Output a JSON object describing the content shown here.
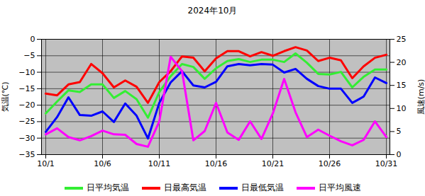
{
  "chart_data": {
    "type": "line",
    "title": "2024年10月",
    "categories": [
      "10/1",
      null,
      null,
      null,
      null,
      "10/6",
      null,
      null,
      null,
      null,
      "10/11",
      null,
      null,
      null,
      null,
      "10/16",
      null,
      null,
      null,
      null,
      "10/21",
      null,
      null,
      null,
      null,
      "10/26",
      null,
      null,
      null,
      null,
      "10/31"
    ],
    "y_label": "気温(℃)",
    "y2_label": "風速(m/s)",
    "ylim": [
      -35,
      0
    ],
    "yticks": [
      -35,
      -30,
      -25,
      -20,
      -15,
      -10,
      -5,
      0
    ],
    "y2lim": [
      0,
      25
    ],
    "y2ticks": [
      0,
      5,
      10,
      15,
      20,
      25
    ],
    "grid": true,
    "legend": "bottom",
    "series": [
      {
        "name": "日平均気温",
        "color": "#33ee33",
        "values": [
          -22.5,
          -18.9,
          -15.5,
          -16,
          -13.7,
          -13.7,
          -17.8,
          -15.7,
          -18.2,
          -23.8,
          -16,
          -11.2,
          -7.5,
          -8.4,
          -12,
          -8.8,
          -6.6,
          -6,
          -6.9,
          -6.2,
          -6.2,
          -6.9,
          -4.3,
          -7.1,
          -10.5,
          -10.7,
          -9.9,
          -14.6,
          -11.4,
          -9.2,
          -9.2
        ]
      },
      {
        "name": "日最高気温",
        "color": "#ff0000",
        "values": [
          -16.5,
          -17,
          -13.7,
          -13,
          -7.5,
          -10.3,
          -14.6,
          -12.5,
          -14.4,
          -19.3,
          -13,
          -9.7,
          -5.2,
          -5.6,
          -9.7,
          -5.8,
          -3.6,
          -3.6,
          -5.2,
          -3.9,
          -5,
          -3.6,
          -2.4,
          -3.4,
          -6.6,
          -5.6,
          -6.4,
          -11.8,
          -8.2,
          -5.6,
          -4.7
        ]
      },
      {
        "name": "日最低気温",
        "color": "#0000ff",
        "values": [
          -28.1,
          -23.6,
          -17.6,
          -23,
          -23.2,
          -21.9,
          -25.1,
          -19.5,
          -23.2,
          -30.1,
          -19.3,
          -13.1,
          -9.7,
          -14,
          -14.6,
          -12.9,
          -8.2,
          -7.5,
          -7.9,
          -7.5,
          -7.7,
          -10.1,
          -9,
          -12,
          -14.2,
          -15,
          -15,
          -19.3,
          -17.4,
          -11.6,
          -13.3
        ]
      },
      {
        "name": "日平均風速",
        "color": "#ff00ff",
        "axis": "y2",
        "values": [
          4.4,
          5.7,
          3.8,
          3.1,
          4,
          5.2,
          4.4,
          4.3,
          2.3,
          1.7,
          7.2,
          21.2,
          18.1,
          3.1,
          5.1,
          11.2,
          4.8,
          3.2,
          7.2,
          3.4,
          8.9,
          16.4,
          9.2,
          3.8,
          5.4,
          4.1,
          2.9,
          2,
          3.2,
          7.2,
          3.8
        ]
      }
    ]
  }
}
